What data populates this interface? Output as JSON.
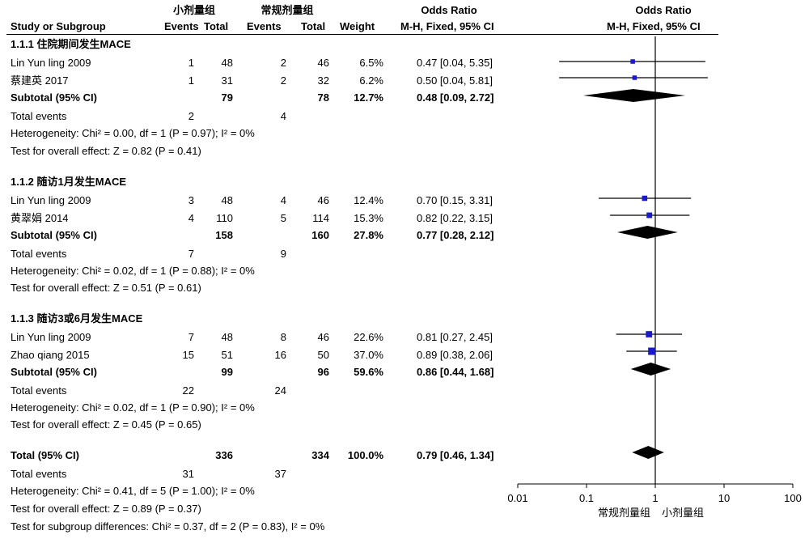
{
  "header": {
    "group1": "小剂量组",
    "group2": "常规剂量组",
    "or_text": "Odds Ratio",
    "or_plot": "Odds Ratio",
    "study": "Study or Subgroup",
    "events1": "Events",
    "total1": "Total",
    "events2": "Events",
    "total2": "Total",
    "weight": "Weight",
    "method_text": "M-H, Fixed, 95% CI",
    "method_plot": "M-H, Fixed, 95% CI"
  },
  "subgroups": [
    {
      "title": "1.1.1 住院期间发生MACE",
      "studies": [
        {
          "name": "Lin Yun ling 2009",
          "e1": "1",
          "t1": "48",
          "e2": "2",
          "t2": "46",
          "weight": "6.5%",
          "ci": "0.47 [0.04, 5.35]"
        },
        {
          "name": "蔡建英 2017",
          "e1": "1",
          "t1": "31",
          "e2": "2",
          "t2": "32",
          "weight": "6.2%",
          "ci": "0.50 [0.04, 5.81]"
        }
      ],
      "subtotal": {
        "label": "Subtotal (95% CI)",
        "t1": "79",
        "t2": "78",
        "weight": "12.7%",
        "ci": "0.48 [0.09, 2.72]"
      },
      "events": {
        "label": "Total events",
        "e1": "2",
        "e2": "4"
      },
      "heterogeneity": "Heterogeneity: Chi² = 0.00, df = 1 (P = 0.97); I² = 0%",
      "overall": "Test for overall effect: Z = 0.82 (P = 0.41)"
    },
    {
      "title": "1.1.2 随访1月发生MACE",
      "studies": [
        {
          "name": "Lin Yun ling 2009",
          "e1": "3",
          "t1": "48",
          "e2": "4",
          "t2": "46",
          "weight": "12.4%",
          "ci": "0.70 [0.15, 3.31]"
        },
        {
          "name": "黄翠娟 2014",
          "e1": "4",
          "t1": "110",
          "e2": "5",
          "t2": "114",
          "weight": "15.3%",
          "ci": "0.82 [0.22, 3.15]"
        }
      ],
      "subtotal": {
        "label": "Subtotal (95% CI)",
        "t1": "158",
        "t2": "160",
        "weight": "27.8%",
        "ci": "0.77 [0.28, 2.12]"
      },
      "events": {
        "label": "Total events",
        "e1": "7",
        "e2": "9"
      },
      "heterogeneity": "Heterogeneity: Chi² = 0.02, df = 1 (P = 0.88); I² = 0%",
      "overall": "Test for overall effect: Z = 0.51 (P = 0.61)"
    },
    {
      "title": "1.1.3 随访3或6月发生MACE",
      "studies": [
        {
          "name": "Lin Yun ling 2009",
          "e1": "7",
          "t1": "48",
          "e2": "8",
          "t2": "46",
          "weight": "22.6%",
          "ci": "0.81 [0.27, 2.45]"
        },
        {
          "name": "Zhao qiang 2015",
          "e1": "15",
          "t1": "51",
          "e2": "16",
          "t2": "50",
          "weight": "37.0%",
          "ci": "0.89 [0.38, 2.06]"
        }
      ],
      "subtotal": {
        "label": "Subtotal (95% CI)",
        "t1": "99",
        "t2": "96",
        "weight": "59.6%",
        "ci": "0.86 [0.44, 1.68]"
      },
      "events": {
        "label": "Total events",
        "e1": "22",
        "e2": "24"
      },
      "heterogeneity": "Heterogeneity: Chi² = 0.02, df = 1 (P = 0.90); I² = 0%",
      "overall": "Test for overall effect: Z = 0.45 (P = 0.65)"
    }
  ],
  "total": {
    "label": "Total (95% CI)",
    "t1": "336",
    "t2": "334",
    "weight": "100.0%",
    "ci": "0.79 [0.46, 1.34]",
    "events": {
      "label": "Total events",
      "e1": "31",
      "e2": "37"
    },
    "heterogeneity": "Heterogeneity: Chi² = 0.41, df = 5 (P = 1.00); I² = 0%",
    "overall": "Test for overall effect: Z = 0.89 (P = 0.37)",
    "subgroup_diff": "Test for subgroup differences: Chi² = 0.37, df = 2 (P = 0.83), I² = 0%"
  },
  "axis": {
    "ticks": [
      "0.01",
      "0.1",
      "1",
      "10",
      "100"
    ],
    "label_left": "常规剂量组",
    "label_right": "小剂量组"
  },
  "colors": {
    "marker": "#1a1acc",
    "diamond": "#000000",
    "line": "#000000"
  },
  "chart_data": {
    "type": "forest",
    "scale": "log",
    "xlim": [
      0.01,
      100
    ],
    "reference_line": 1,
    "points": [
      {
        "label": "Lin Yun ling 2009",
        "or": 0.47,
        "lo": 0.04,
        "hi": 5.35,
        "weight": 6.5,
        "kind": "study"
      },
      {
        "label": "蔡建英 2017",
        "or": 0.5,
        "lo": 0.04,
        "hi": 5.81,
        "weight": 6.2,
        "kind": "study"
      },
      {
        "label": "Subtotal (95% CI)",
        "or": 0.48,
        "lo": 0.09,
        "hi": 2.72,
        "weight": 12.7,
        "kind": "diamond"
      },
      {
        "label": "Lin Yun ling 2009",
        "or": 0.7,
        "lo": 0.15,
        "hi": 3.31,
        "weight": 12.4,
        "kind": "study"
      },
      {
        "label": "黄翠娟 2014",
        "or": 0.82,
        "lo": 0.22,
        "hi": 3.15,
        "weight": 15.3,
        "kind": "study"
      },
      {
        "label": "Subtotal (95% CI)",
        "or": 0.77,
        "lo": 0.28,
        "hi": 2.12,
        "weight": 27.8,
        "kind": "diamond"
      },
      {
        "label": "Lin Yun ling 2009",
        "or": 0.81,
        "lo": 0.27,
        "hi": 2.45,
        "weight": 22.6,
        "kind": "study"
      },
      {
        "label": "Zhao qiang 2015",
        "or": 0.89,
        "lo": 0.38,
        "hi": 2.06,
        "weight": 37.0,
        "kind": "study"
      },
      {
        "label": "Subtotal (95% CI)",
        "or": 0.86,
        "lo": 0.44,
        "hi": 1.68,
        "weight": 59.6,
        "kind": "diamond"
      },
      {
        "label": "Total (95% CI)",
        "or": 0.79,
        "lo": 0.46,
        "hi": 1.34,
        "weight": 100.0,
        "kind": "diamond"
      }
    ]
  }
}
